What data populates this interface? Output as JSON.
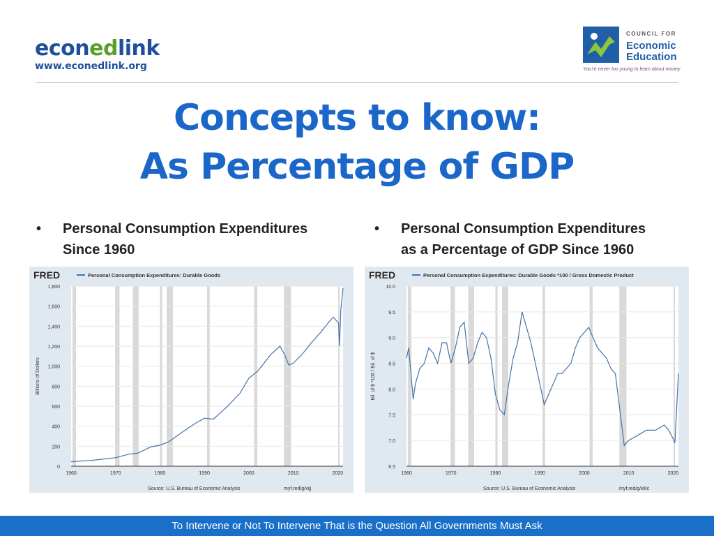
{
  "logo_left": {
    "brand_a": "econ",
    "brand_b": "ed",
    "brand_c": "link",
    "url": "www.econedlink.org"
  },
  "logo_right": {
    "line1": "COUNCIL FOR",
    "line2": "Economic",
    "line3": "Education",
    "tagline": "You're never too young to learn about money"
  },
  "title_line1": "Concepts to know:",
  "title_line2": "As Percentage of GDP",
  "bullets": [
    {
      "dot": "•",
      "line1": "Personal Consumption Expenditures",
      "line2": "Since 1960"
    },
    {
      "dot": "•",
      "line1": "Personal Consumption Expenditures",
      "line2": "as a Percentage of GDP Since 1960"
    }
  ],
  "footer": "To Intervene or Not To Intervene That is the Question All Governments Must Ask",
  "colors": {
    "title": "#1a66c9",
    "series": "#4572a7",
    "recession": "#d9d9d9",
    "footer": "#1a6fc8"
  },
  "chart_data": [
    {
      "type": "line",
      "brand": "FRED",
      "legend": "Personal Consumption Expenditures: Durable Goods",
      "ylabel": "Billions of Dollars",
      "source": "Source: U.S. Bureau of Economic Analysis",
      "link": "myf.red/g/xijj",
      "xlim": [
        1960,
        2021.2
      ],
      "ylim": [
        0,
        1800
      ],
      "yticks": [
        0,
        200,
        400,
        600,
        800,
        1000,
        1200,
        1400,
        1600,
        1800
      ],
      "ytick_labels": [
        "0",
        "200",
        "400",
        "600",
        "800",
        "1,000",
        "1,200",
        "1,400",
        "1,600",
        "1,800"
      ],
      "xticks": [
        1960,
        1970,
        1980,
        1990,
        2000,
        2010,
        2020
      ],
      "recessions": [
        [
          1960.3,
          1961.1
        ],
        [
          1969.9,
          1970.9
        ],
        [
          1973.9,
          1975.2
        ],
        [
          1980.0,
          1980.5
        ],
        [
          1981.5,
          1982.9
        ],
        [
          1990.6,
          1991.2
        ],
        [
          2001.2,
          2001.9
        ],
        [
          2007.9,
          2009.5
        ],
        [
          2020.1,
          2020.4
        ]
      ],
      "series": [
        {
          "x": [
            1960,
            1965,
            1970,
            1973,
            1975,
            1978,
            1980,
            1982,
            1985,
            1988,
            1990,
            1992,
            1995,
            1998,
            2000,
            2002,
            2005,
            2007,
            2008,
            2009,
            2010,
            2012,
            2014,
            2016,
            2018,
            2019,
            2020.2,
            2020.4,
            2020.7,
            2021.2
          ],
          "y": [
            45,
            60,
            85,
            120,
            130,
            195,
            210,
            245,
            340,
            430,
            480,
            470,
            590,
            730,
            880,
            950,
            1120,
            1200,
            1120,
            1010,
            1030,
            1120,
            1230,
            1330,
            1440,
            1490,
            1430,
            1200,
            1560,
            1780
          ]
        }
      ]
    },
    {
      "type": "line",
      "brand": "FRED",
      "legend": "Personal Consumption Expenditures: Durable Goods *100 / Gross Domestic Product",
      "ylabel": "Bil. of $ *100 / Bil. of $",
      "source": "Source: U.S. Bureau of Economic Analysis",
      "link": "myf.red/g/xikc",
      "xlim": [
        1960,
        2021.2
      ],
      "ylim": [
        6.5,
        10.0
      ],
      "yticks": [
        6.5,
        7.0,
        7.5,
        8.0,
        8.5,
        9.0,
        9.5,
        10.0
      ],
      "ytick_labels": [
        "6.5",
        "7.0",
        "7.5",
        "8.0",
        "8.5",
        "9.0",
        "9.5",
        "10.0"
      ],
      "xticks": [
        1960,
        1970,
        1980,
        1990,
        2000,
        2010,
        2020
      ],
      "recessions": [
        [
          1960.3,
          1961.1
        ],
        [
          1969.9,
          1970.9
        ],
        [
          1973.9,
          1975.2
        ],
        [
          1980.0,
          1980.5
        ],
        [
          1981.5,
          1982.9
        ],
        [
          1990.6,
          1991.2
        ],
        [
          2001.2,
          2001.9
        ],
        [
          2007.9,
          2009.5
        ],
        [
          2020.1,
          2020.4
        ]
      ],
      "series": [
        {
          "x": [
            1960,
            1960.5,
            1961,
            1961.5,
            1962,
            1963,
            1964,
            1965,
            1966,
            1967,
            1968,
            1969,
            1970,
            1971,
            1972,
            1973,
            1974,
            1975,
            1976,
            1977,
            1978,
            1979,
            1980,
            1981,
            1982,
            1983,
            1984,
            1985,
            1986,
            1987,
            1988,
            1989,
            1990,
            1991,
            1992,
            1993,
            1994,
            1995,
            1996,
            1997,
            1998,
            1999,
            2000,
            2001,
            2002,
            2003,
            2004,
            2005,
            2006,
            2007,
            2008,
            2009,
            2010,
            2012,
            2014,
            2016,
            2018,
            2019,
            2020.2,
            2020.4,
            2021.2
          ],
          "y": [
            8.6,
            8.8,
            8.3,
            7.8,
            8.1,
            8.4,
            8.5,
            8.8,
            8.7,
            8.5,
            8.9,
            8.9,
            8.5,
            8.8,
            9.2,
            9.3,
            8.5,
            8.6,
            8.9,
            9.1,
            9.0,
            8.6,
            7.9,
            7.6,
            7.5,
            8.1,
            8.6,
            8.9,
            9.5,
            9.2,
            8.9,
            8.5,
            8.1,
            7.7,
            7.9,
            8.1,
            8.3,
            8.3,
            8.4,
            8.5,
            8.8,
            9.0,
            9.1,
            9.2,
            9.0,
            8.8,
            8.7,
            8.6,
            8.4,
            8.3,
            7.6,
            6.9,
            7.0,
            7.1,
            7.2,
            7.2,
            7.3,
            7.2,
            7.0,
            6.95,
            8.3
          ]
        }
      ]
    }
  ]
}
